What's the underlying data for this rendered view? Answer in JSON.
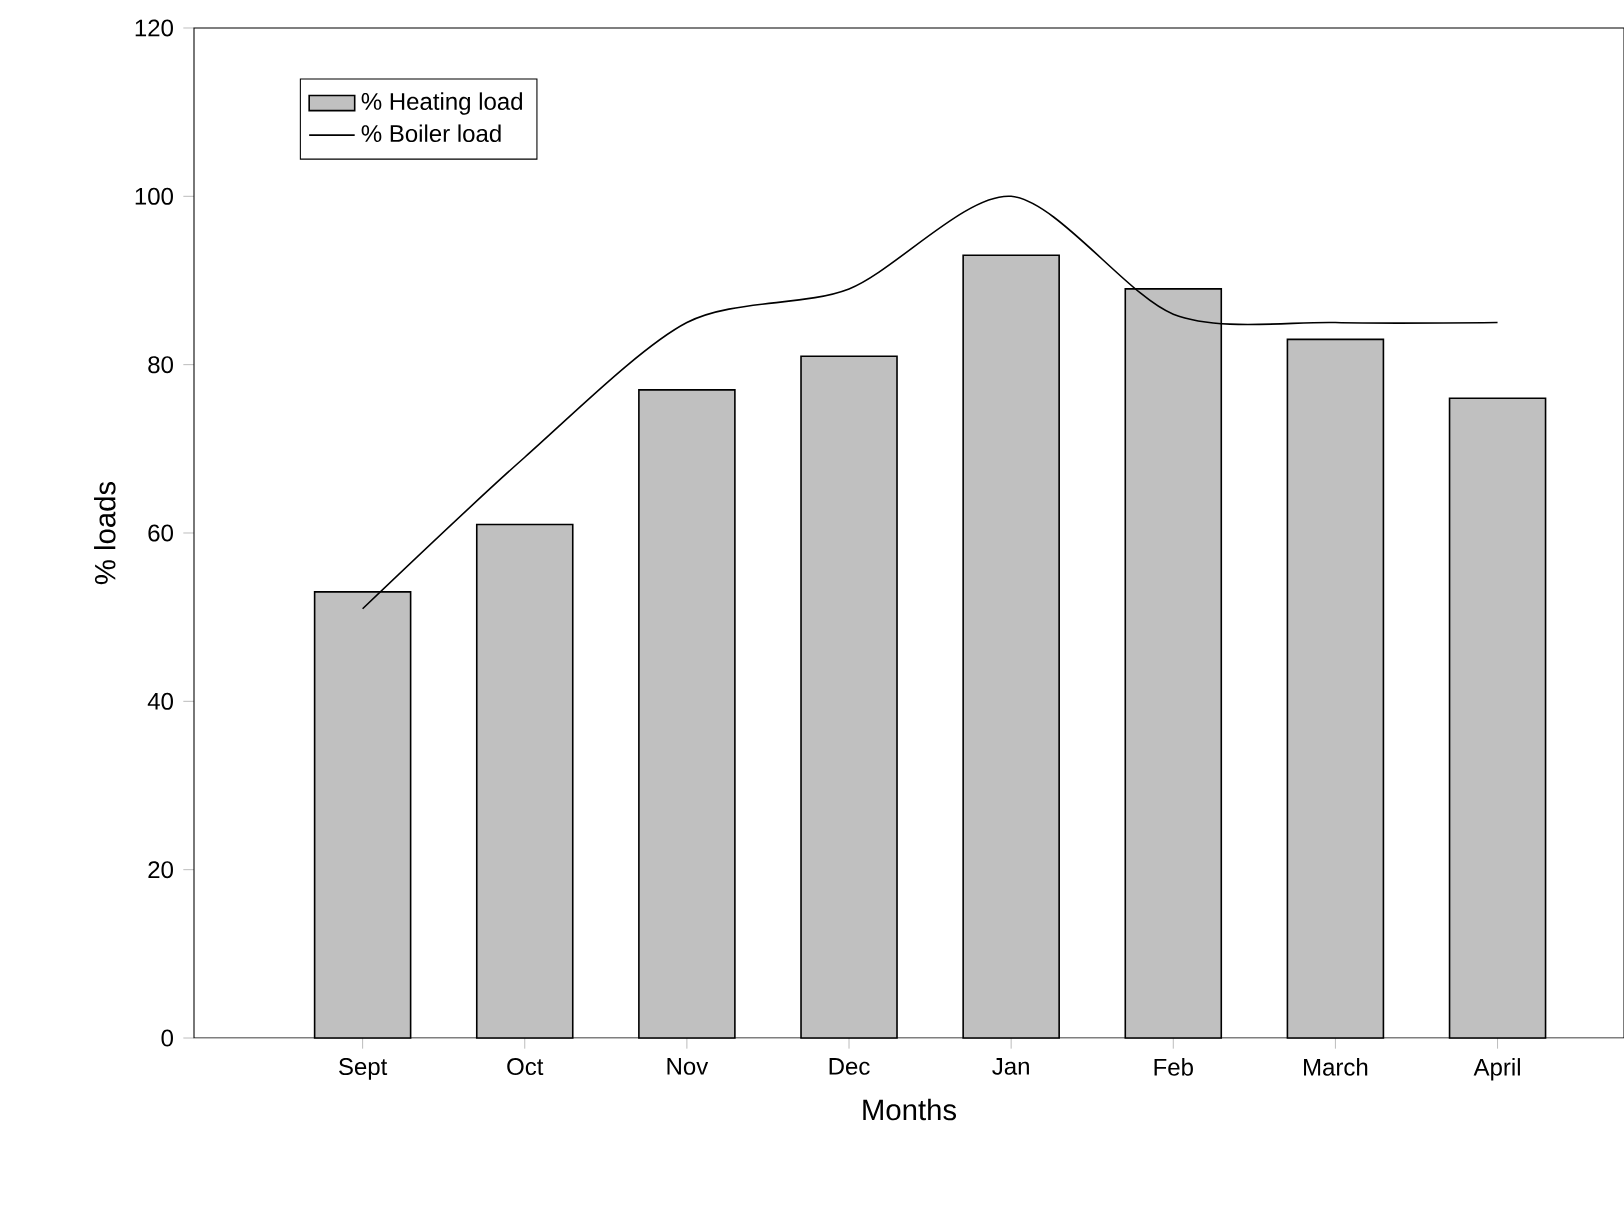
{
  "chart_data": {
    "type": "bar",
    "xlabel": "Months",
    "ylabel": "% loads",
    "categories": [
      "Sept",
      "Oct",
      "Nov",
      "Dec",
      "Jan",
      "Feb",
      "March",
      "April"
    ],
    "series": [
      {
        "name": "% Heating load",
        "color": "#c0c0c0",
        "values": [
          53,
          61,
          77,
          81,
          93,
          89,
          83,
          76
        ]
      },
      {
        "name": "% Boiler load",
        "type": "line",
        "color": "#000000",
        "values": [
          51,
          69,
          85,
          89,
          100,
          86,
          85,
          85
        ]
      }
    ],
    "ylim": [
      0,
      120
    ],
    "yticks": [
      0,
      20,
      40,
      60,
      80,
      100,
      120
    ],
    "legend": "top left",
    "grid": false
  }
}
